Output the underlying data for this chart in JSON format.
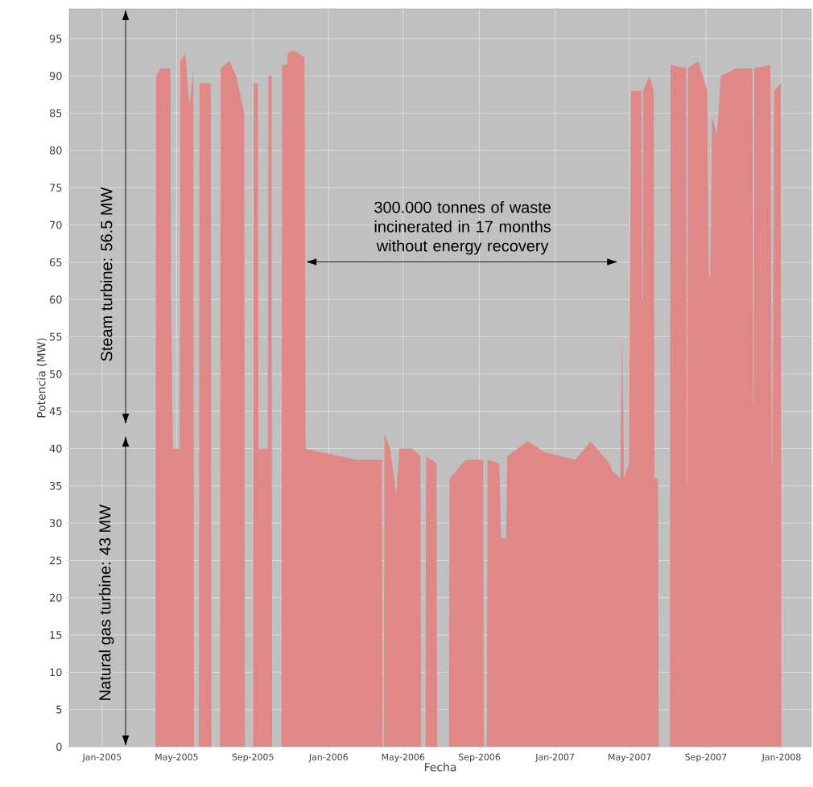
{
  "chart_data": {
    "type": "area",
    "xlabel": "Fecha",
    "ylabel": "Potencia (MW)",
    "annotations": [
      "Steam turbine: 56.5 MW",
      "Natural gas turbine: 43 MW",
      "300.000 tonnes of waste incinerated in 17 months without energy recovery"
    ],
    "xlim": [
      "2004-11-09",
      "2008-02-18"
    ],
    "ylim": [
      0,
      99
    ],
    "xticks": [
      {
        "value": "2005-01-01",
        "label": "Jan-2005"
      },
      {
        "value": "2005-05-01",
        "label": "May-2005"
      },
      {
        "value": "2005-09-01",
        "label": "Sep-2005"
      },
      {
        "value": "2006-01-01",
        "label": "Jan-2006"
      },
      {
        "value": "2006-05-01",
        "label": "May-2006"
      },
      {
        "value": "2006-09-01",
        "label": "Sep-2006"
      },
      {
        "value": "2007-01-01",
        "label": "Jan-2007"
      },
      {
        "value": "2007-05-01",
        "label": "May-2007"
      },
      {
        "value": "2007-09-01",
        "label": "Sep-2007"
      },
      {
        "value": "2008-01-01",
        "label": "Jan-2008"
      }
    ],
    "yticks": [
      0,
      5,
      10,
      15,
      20,
      25,
      30,
      35,
      40,
      45,
      50,
      55,
      60,
      65,
      70,
      75,
      80,
      85,
      90,
      95
    ],
    "grid": true,
    "series": [
      {
        "color": "#e08888",
        "x": [
          "2005-03-28",
          "2005-03-29",
          "2005-04-05",
          "2005-04-21",
          "2005-04-22",
          "2005-04-25",
          "2005-05-06",
          "2005-05-07",
          "2005-05-15",
          "2005-05-22",
          "2005-05-28",
          "2005-05-29",
          "2005-06-06",
          "2005-06-07",
          "2005-06-25",
          "2005-06-26",
          "2005-07-10",
          "2005-07-11",
          "2005-07-25",
          "2005-08-05",
          "2005-08-18",
          "2005-08-19",
          "2005-09-01",
          "2005-09-02",
          "2005-09-09",
          "2005-09-10",
          "2005-09-25",
          "2005-09-26",
          "2005-10-01",
          "2005-10-02",
          "2005-10-17",
          "2005-10-18",
          "2005-10-26",
          "2005-10-27",
          "2005-11-05",
          "2005-11-23",
          "2005-11-25",
          "2005-12-20",
          "2006-02-15",
          "2006-03-28",
          "2006-03-29",
          "2006-03-31",
          "2006-04-01",
          "2006-04-10",
          "2006-04-20",
          "2006-04-25",
          "2006-05-15",
          "2006-05-29",
          "2006-05-30",
          "2006-06-06",
          "2006-06-07",
          "2006-06-24",
          "2006-06-25",
          "2006-07-14",
          "2006-07-15",
          "2006-08-10",
          "2006-08-12",
          "2006-09-07",
          "2006-09-08",
          "2006-09-13",
          "2006-09-14",
          "2006-10-03",
          "2006-10-06",
          "2006-10-14",
          "2006-10-16",
          "2006-11-18",
          "2006-12-15",
          "2007-02-03",
          "2007-02-27",
          "2007-03-30",
          "2007-04-03",
          "2007-04-16",
          "2007-04-19",
          "2007-04-22",
          "2007-04-30",
          "2007-05-03",
          "2007-05-20",
          "2007-05-21",
          "2007-05-22",
          "2007-05-23",
          "2007-06-02",
          "2007-06-09",
          "2007-06-10",
          "2007-06-16",
          "2007-06-17",
          "2007-07-05",
          "2007-07-06",
          "2007-07-31",
          "2007-08-01",
          "2007-08-02",
          "2007-08-03",
          "2007-08-20",
          "2007-09-03",
          "2007-09-06",
          "2007-09-08",
          "2007-09-11",
          "2007-09-19",
          "2007-09-25",
          "2007-10-20",
          "2007-11-15",
          "2007-11-16",
          "2007-11-17",
          "2007-11-18",
          "2007-12-14",
          "2007-12-16",
          "2007-12-17",
          "2007-12-20",
          "2007-12-31",
          "2008-01-01"
        ],
        "values": [
          0,
          90,
          91,
          91,
          60,
          40,
          40,
          92,
          93,
          86,
          91,
          0,
          0,
          89,
          89,
          0,
          0,
          91,
          92,
          90,
          85,
          0,
          0,
          89,
          89,
          40,
          40,
          90,
          90,
          0,
          0,
          91.5,
          91.5,
          93,
          93.5,
          92.5,
          40,
          39.5,
          38.5,
          38.5,
          0,
          0,
          42,
          40,
          34,
          40,
          40,
          39,
          0,
          0,
          39,
          38,
          0,
          0,
          36,
          38.5,
          38.5,
          38.5,
          0,
          0,
          38.5,
          38,
          28,
          28,
          39,
          41,
          39.5,
          38.5,
          41,
          38,
          37,
          36,
          55,
          36,
          38,
          88,
          88,
          60,
          60,
          88,
          90,
          88,
          36,
          36,
          0,
          0,
          91.5,
          91,
          35,
          35,
          91,
          92,
          88,
          63,
          63,
          84.5,
          82,
          90,
          91,
          91,
          46,
          46,
          91,
          91.5,
          38,
          38,
          88,
          89,
          0
        ]
      }
    ]
  }
}
